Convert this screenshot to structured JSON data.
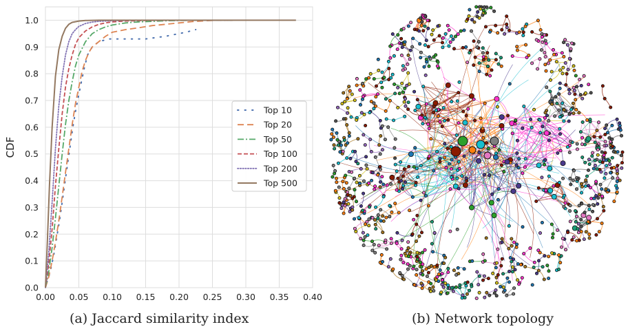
{
  "captions": {
    "a": "(a) Jaccard similarity index",
    "b": "(b) Network topology"
  },
  "chart_data": [
    {
      "type": "line",
      "title": "",
      "xlabel": "",
      "ylabel": "CDF",
      "xlim": [
        0.0,
        0.4
      ],
      "ylim": [
        0.0,
        1.05
      ],
      "xticks": [
        "0.00",
        "0.05",
        "0.10",
        "0.15",
        "0.20",
        "0.25",
        "0.30",
        "0.35",
        "0.40"
      ],
      "yticks": [
        "0.0",
        "0.1",
        "0.2",
        "0.3",
        "0.4",
        "0.5",
        "0.6",
        "0.7",
        "0.8",
        "0.9",
        "1.0"
      ],
      "grid": true,
      "legend_position": "right",
      "series": [
        {
          "name": "Top 10",
          "style": "dotted-sparse",
          "color": "#4c72b0",
          "x": [
            0.002,
            0.005,
            0.009,
            0.013,
            0.017,
            0.021,
            0.025,
            0.029,
            0.033,
            0.037,
            0.041,
            0.045,
            0.049,
            0.053,
            0.058,
            0.063,
            0.07,
            0.08,
            0.095,
            0.11,
            0.13,
            0.15,
            0.18,
            0.21,
            0.225
          ],
          "y": [
            0.02,
            0.04,
            0.08,
            0.13,
            0.19,
            0.25,
            0.32,
            0.39,
            0.46,
            0.53,
            0.6,
            0.66,
            0.71,
            0.76,
            0.82,
            0.87,
            0.9,
            0.92,
            0.93,
            0.93,
            0.93,
            0.93,
            0.94,
            0.955,
            0.965
          ]
        },
        {
          "name": "Top 20",
          "style": "dashed-long",
          "color": "#dd8452",
          "x": [
            0.0,
            0.005,
            0.01,
            0.015,
            0.02,
            0.025,
            0.03,
            0.035,
            0.04,
            0.045,
            0.05,
            0.055,
            0.06,
            0.065,
            0.07,
            0.08,
            0.09,
            0.1,
            0.12,
            0.14,
            0.16,
            0.18,
            0.2,
            0.22,
            0.24,
            0.26
          ],
          "y": [
            0.0,
            0.04,
            0.1,
            0.17,
            0.25,
            0.34,
            0.43,
            0.52,
            0.61,
            0.69,
            0.75,
            0.81,
            0.85,
            0.88,
            0.9,
            0.92,
            0.94,
            0.955,
            0.965,
            0.972,
            0.98,
            0.985,
            0.99,
            0.995,
            0.998,
            1.0
          ]
        },
        {
          "name": "Top 50",
          "style": "dashdot",
          "color": "#55a868",
          "x": [
            0.0,
            0.005,
            0.01,
            0.015,
            0.02,
            0.025,
            0.03,
            0.035,
            0.04,
            0.045,
            0.05,
            0.06,
            0.07,
            0.08,
            0.09,
            0.1,
            0.12,
            0.14,
            0.16,
            0.18,
            0.2,
            0.24,
            0.28
          ],
          "y": [
            0.0,
            0.06,
            0.15,
            0.26,
            0.38,
            0.5,
            0.61,
            0.7,
            0.77,
            0.83,
            0.87,
            0.92,
            0.95,
            0.965,
            0.975,
            0.982,
            0.99,
            0.994,
            0.996,
            0.998,
            0.999,
            1.0,
            1.0
          ]
        },
        {
          "name": "Top 100",
          "style": "dashed",
          "color": "#c44e52",
          "x": [
            0.0,
            0.005,
            0.01,
            0.015,
            0.02,
            0.025,
            0.03,
            0.035,
            0.04,
            0.045,
            0.05,
            0.06,
            0.07,
            0.08,
            0.09,
            0.1,
            0.12,
            0.15,
            0.2,
            0.28
          ],
          "y": [
            0.0,
            0.09,
            0.22,
            0.38,
            0.52,
            0.65,
            0.75,
            0.82,
            0.87,
            0.91,
            0.935,
            0.96,
            0.975,
            0.985,
            0.99,
            0.994,
            0.997,
            0.999,
            1.0,
            1.0
          ]
        },
        {
          "name": "Top 200",
          "style": "dotted",
          "color": "#8172b3",
          "x": [
            0.0,
            0.005,
            0.01,
            0.015,
            0.02,
            0.025,
            0.03,
            0.035,
            0.04,
            0.045,
            0.05,
            0.06,
            0.07,
            0.08,
            0.1,
            0.12,
            0.15,
            0.2,
            0.28
          ],
          "y": [
            0.0,
            0.13,
            0.32,
            0.52,
            0.68,
            0.79,
            0.87,
            0.92,
            0.95,
            0.965,
            0.977,
            0.988,
            0.993,
            0.996,
            0.998,
            0.999,
            1.0,
            1.0,
            1.0
          ]
        },
        {
          "name": "Top 500",
          "style": "solid",
          "color": "#937860",
          "x": [
            0.0,
            0.003,
            0.006,
            0.01,
            0.015,
            0.02,
            0.025,
            0.03,
            0.035,
            0.04,
            0.05,
            0.06,
            0.08,
            0.1,
            0.15,
            0.2,
            0.3,
            0.375
          ],
          "y": [
            0.0,
            0.18,
            0.38,
            0.6,
            0.79,
            0.89,
            0.94,
            0.97,
            0.985,
            0.992,
            0.997,
            0.999,
            1.0,
            1.0,
            1.0,
            1.0,
            1.0,
            1.0
          ]
        }
      ]
    },
    {
      "type": "network",
      "node_color_palette": [
        "#ff7f0e",
        "#8b1a00",
        "#ff33cc",
        "#17becf",
        "#4a3a8c",
        "#1f77b4",
        "#2ca02c",
        "#d4c21a",
        "#555555",
        "#e377c2",
        "#1b9e77",
        "#a6761d",
        "#7f7f7f",
        "#9467bd"
      ],
      "background_color": "#ffffff"
    }
  ]
}
